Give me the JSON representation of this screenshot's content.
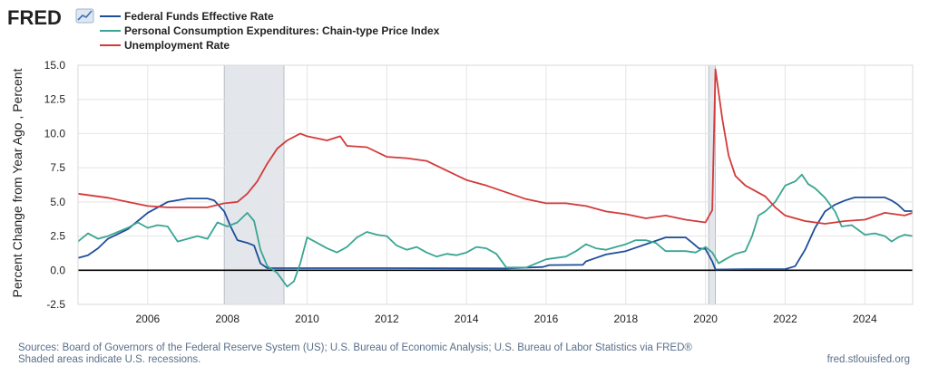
{
  "logo": {
    "text": "FRED"
  },
  "colors": {
    "fedfunds": "#1f4e9a",
    "pce": "#3aa592",
    "unrate": "#d43a3a",
    "recession": "#e3e7ec"
  },
  "chart_data": {
    "type": "line",
    "ylabel": "Percent Change from Year Ago , Percent",
    "ylim": [
      -2.5,
      15.0
    ],
    "xlim": [
      2004.25,
      2025.2
    ],
    "yticks": [
      -2.5,
      0.0,
      2.5,
      5.0,
      7.5,
      10.0,
      12.5,
      15.0
    ],
    "ytick_labels": [
      "-2.5",
      "0.0",
      "2.5",
      "5.0",
      "7.5",
      "10.0",
      "12.5",
      "15.0"
    ],
    "xticks": [
      2006,
      2008,
      2010,
      2012,
      2014,
      2016,
      2018,
      2020,
      2022,
      2024
    ],
    "xtick_labels": [
      "2006",
      "2008",
      "2010",
      "2012",
      "2014",
      "2016",
      "2018",
      "2020",
      "2022",
      "2024"
    ],
    "grid": true,
    "legend_position": "top-left",
    "recessions": [
      [
        2007.92,
        2009.42
      ],
      [
        2020.08,
        2020.25
      ]
    ],
    "series": [
      {
        "name": "Federal Funds Effective Rate",
        "color_key": "fedfunds",
        "points": [
          [
            2004.25,
            0.9
          ],
          [
            2004.5,
            1.1
          ],
          [
            2004.75,
            1.6
          ],
          [
            2005.0,
            2.3
          ],
          [
            2005.5,
            3.0
          ],
          [
            2006.0,
            4.2
          ],
          [
            2006.5,
            5.0
          ],
          [
            2007.0,
            5.25
          ],
          [
            2007.5,
            5.25
          ],
          [
            2007.67,
            5.1
          ],
          [
            2007.92,
            4.3
          ],
          [
            2008.08,
            3.2
          ],
          [
            2008.25,
            2.2
          ],
          [
            2008.5,
            2.0
          ],
          [
            2008.67,
            1.8
          ],
          [
            2008.83,
            0.5
          ],
          [
            2009.0,
            0.15
          ],
          [
            2010.0,
            0.15
          ],
          [
            2012.0,
            0.15
          ],
          [
            2015.0,
            0.13
          ],
          [
            2015.92,
            0.24
          ],
          [
            2016.08,
            0.38
          ],
          [
            2016.92,
            0.4
          ],
          [
            2017.0,
            0.65
          ],
          [
            2017.25,
            0.9
          ],
          [
            2017.5,
            1.15
          ],
          [
            2018.0,
            1.4
          ],
          [
            2018.5,
            1.9
          ],
          [
            2019.0,
            2.4
          ],
          [
            2019.5,
            2.4
          ],
          [
            2019.67,
            2.0
          ],
          [
            2019.83,
            1.6
          ],
          [
            2020.0,
            1.55
          ],
          [
            2020.17,
            0.65
          ],
          [
            2020.25,
            0.05
          ],
          [
            2021.0,
            0.08
          ],
          [
            2022.0,
            0.08
          ],
          [
            2022.25,
            0.3
          ],
          [
            2022.5,
            1.5
          ],
          [
            2022.75,
            3.1
          ],
          [
            2023.0,
            4.3
          ],
          [
            2023.25,
            4.8
          ],
          [
            2023.5,
            5.1
          ],
          [
            2023.75,
            5.33
          ],
          [
            2024.5,
            5.33
          ],
          [
            2024.67,
            5.1
          ],
          [
            2024.83,
            4.8
          ],
          [
            2025.0,
            4.33
          ],
          [
            2025.2,
            4.33
          ]
        ]
      },
      {
        "name": "Personal Consumption Expenditures: Chain-type Price Index",
        "color_key": "pce",
        "points": [
          [
            2004.25,
            2.1
          ],
          [
            2004.5,
            2.7
          ],
          [
            2004.75,
            2.3
          ],
          [
            2005.0,
            2.5
          ],
          [
            2005.25,
            2.8
          ],
          [
            2005.5,
            3.1
          ],
          [
            2005.75,
            3.5
          ],
          [
            2006.0,
            3.1
          ],
          [
            2006.25,
            3.3
          ],
          [
            2006.5,
            3.2
          ],
          [
            2006.75,
            2.1
          ],
          [
            2007.0,
            2.3
          ],
          [
            2007.25,
            2.5
          ],
          [
            2007.5,
            2.3
          ],
          [
            2007.75,
            3.5
          ],
          [
            2008.0,
            3.2
          ],
          [
            2008.25,
            3.5
          ],
          [
            2008.5,
            4.2
          ],
          [
            2008.67,
            3.6
          ],
          [
            2008.83,
            1.5
          ],
          [
            2009.0,
            0.3
          ],
          [
            2009.25,
            -0.2
          ],
          [
            2009.5,
            -1.2
          ],
          [
            2009.67,
            -0.8
          ],
          [
            2009.83,
            0.5
          ],
          [
            2010.0,
            2.4
          ],
          [
            2010.25,
            2.0
          ],
          [
            2010.5,
            1.6
          ],
          [
            2010.75,
            1.3
          ],
          [
            2011.0,
            1.7
          ],
          [
            2011.25,
            2.4
          ],
          [
            2011.5,
            2.8
          ],
          [
            2011.75,
            2.6
          ],
          [
            2012.0,
            2.5
          ],
          [
            2012.25,
            1.8
          ],
          [
            2012.5,
            1.5
          ],
          [
            2012.75,
            1.7
          ],
          [
            2013.0,
            1.3
          ],
          [
            2013.25,
            1.0
          ],
          [
            2013.5,
            1.2
          ],
          [
            2013.75,
            1.1
          ],
          [
            2014.0,
            1.3
          ],
          [
            2014.25,
            1.7
          ],
          [
            2014.5,
            1.6
          ],
          [
            2014.75,
            1.2
          ],
          [
            2015.0,
            0.2
          ],
          [
            2015.5,
            0.2
          ],
          [
            2016.0,
            0.8
          ],
          [
            2016.5,
            1.0
          ],
          [
            2016.75,
            1.4
          ],
          [
            2017.0,
            1.9
          ],
          [
            2017.25,
            1.6
          ],
          [
            2017.5,
            1.5
          ],
          [
            2017.75,
            1.7
          ],
          [
            2018.0,
            1.9
          ],
          [
            2018.25,
            2.2
          ],
          [
            2018.5,
            2.2
          ],
          [
            2018.75,
            2.0
          ],
          [
            2019.0,
            1.4
          ],
          [
            2019.5,
            1.4
          ],
          [
            2019.75,
            1.3
          ],
          [
            2020.0,
            1.7
          ],
          [
            2020.17,
            1.3
          ],
          [
            2020.33,
            0.5
          ],
          [
            2020.5,
            0.8
          ],
          [
            2020.75,
            1.2
          ],
          [
            2021.0,
            1.4
          ],
          [
            2021.17,
            2.5
          ],
          [
            2021.33,
            4.0
          ],
          [
            2021.5,
            4.3
          ],
          [
            2021.75,
            5.0
          ],
          [
            2022.0,
            6.2
          ],
          [
            2022.25,
            6.5
          ],
          [
            2022.42,
            7.0
          ],
          [
            2022.58,
            6.3
          ],
          [
            2022.75,
            6.0
          ],
          [
            2023.0,
            5.3
          ],
          [
            2023.25,
            4.3
          ],
          [
            2023.42,
            3.2
          ],
          [
            2023.67,
            3.3
          ],
          [
            2024.0,
            2.6
          ],
          [
            2024.25,
            2.7
          ],
          [
            2024.5,
            2.5
          ],
          [
            2024.67,
            2.1
          ],
          [
            2024.83,
            2.4
          ],
          [
            2025.0,
            2.6
          ],
          [
            2025.2,
            2.5
          ]
        ]
      },
      {
        "name": "Unemployment Rate",
        "color_key": "unrate",
        "points": [
          [
            2004.25,
            5.6
          ],
          [
            2004.5,
            5.5
          ],
          [
            2004.75,
            5.4
          ],
          [
            2005.0,
            5.3
          ],
          [
            2005.5,
            5.0
          ],
          [
            2006.0,
            4.7
          ],
          [
            2006.5,
            4.6
          ],
          [
            2007.0,
            4.6
          ],
          [
            2007.5,
            4.6
          ],
          [
            2007.92,
            4.9
          ],
          [
            2008.25,
            5.0
          ],
          [
            2008.5,
            5.6
          ],
          [
            2008.75,
            6.5
          ],
          [
            2009.0,
            7.8
          ],
          [
            2009.25,
            8.9
          ],
          [
            2009.5,
            9.5
          ],
          [
            2009.83,
            10.0
          ],
          [
            2010.0,
            9.8
          ],
          [
            2010.5,
            9.5
          ],
          [
            2010.83,
            9.8
          ],
          [
            2011.0,
            9.1
          ],
          [
            2011.5,
            9.0
          ],
          [
            2012.0,
            8.3
          ],
          [
            2012.5,
            8.2
          ],
          [
            2013.0,
            8.0
          ],
          [
            2013.5,
            7.3
          ],
          [
            2014.0,
            6.6
          ],
          [
            2014.5,
            6.2
          ],
          [
            2015.0,
            5.7
          ],
          [
            2015.5,
            5.2
          ],
          [
            2016.0,
            4.9
          ],
          [
            2016.5,
            4.9
          ],
          [
            2017.0,
            4.7
          ],
          [
            2017.5,
            4.3
          ],
          [
            2018.0,
            4.1
          ],
          [
            2018.5,
            3.8
          ],
          [
            2019.0,
            4.0
          ],
          [
            2019.5,
            3.7
          ],
          [
            2020.0,
            3.5
          ],
          [
            2020.17,
            4.4
          ],
          [
            2020.25,
            14.7
          ],
          [
            2020.42,
            11.1
          ],
          [
            2020.58,
            8.4
          ],
          [
            2020.75,
            6.9
          ],
          [
            2021.0,
            6.2
          ],
          [
            2021.5,
            5.4
          ],
          [
            2021.75,
            4.6
          ],
          [
            2022.0,
            4.0
          ],
          [
            2022.5,
            3.6
          ],
          [
            2023.0,
            3.4
          ],
          [
            2023.5,
            3.6
          ],
          [
            2024.0,
            3.7
          ],
          [
            2024.5,
            4.2
          ],
          [
            2025.0,
            4.0
          ],
          [
            2025.2,
            4.2
          ]
        ]
      }
    ]
  },
  "footer": {
    "sources": "Sources: Board of Governors of the Federal Reserve System (US); U.S. Bureau of Economic Analysis; U.S. Bureau of Labor Statistics via FRED®",
    "shaded": "Shaded areas indicate U.S. recessions.",
    "url": "fred.stlouisfed.org"
  }
}
